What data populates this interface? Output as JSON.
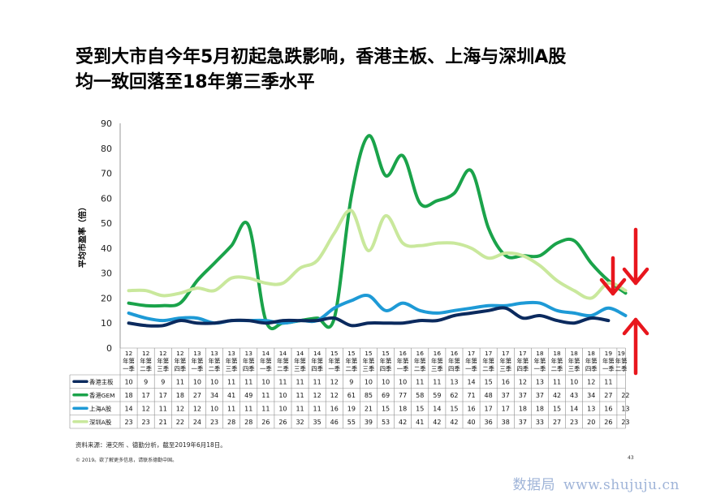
{
  "title": {
    "line1": "受到大市自今年5月初起急跌影响，香港主板、上海与深圳A股",
    "line2": "均一致回落至18年第三季水平"
  },
  "footer": {
    "source": "资料来源：港交所 、德勤分析，截至2019年6月18日。",
    "copyright": "© 2019。欲了解更多信息，请联系德勤中国。",
    "page_number": "43"
  },
  "watermark": {
    "cn": "数据局",
    "url": "www.shujuju.cn"
  },
  "chart_data": {
    "type": "line",
    "ylabel": "平均市盈率（倍）",
    "ylim": [
      0,
      90
    ],
    "yticks": [
      0,
      10,
      20,
      30,
      40,
      50,
      60,
      70,
      80,
      90
    ],
    "categories": [
      [
        "12",
        "年第",
        "一季"
      ],
      [
        "12",
        "年第",
        "二季"
      ],
      [
        "12",
        "年第",
        "三季"
      ],
      [
        "12",
        "年第",
        "四季"
      ],
      [
        "13",
        "年第",
        "一季"
      ],
      [
        "13",
        "年第",
        "二季"
      ],
      [
        "13",
        "年第",
        "三季"
      ],
      [
        "13",
        "年第",
        "四季"
      ],
      [
        "14",
        "年第",
        "一季"
      ],
      [
        "14",
        "年第",
        "二季"
      ],
      [
        "14",
        "年第",
        "三季"
      ],
      [
        "14",
        "年第",
        "四季"
      ],
      [
        "15",
        "年第",
        "一季"
      ],
      [
        "15",
        "年第",
        "二季"
      ],
      [
        "15",
        "年第",
        "三季"
      ],
      [
        "15",
        "年第",
        "四季"
      ],
      [
        "16",
        "年第",
        "一季"
      ],
      [
        "16",
        "年第",
        "二季"
      ],
      [
        "16",
        "年第",
        "三季"
      ],
      [
        "16",
        "年第",
        "四季"
      ],
      [
        "17",
        "年第",
        "一季"
      ],
      [
        "17",
        "年第",
        "二季"
      ],
      [
        "17",
        "年第",
        "三季"
      ],
      [
        "17",
        "年第",
        "四季"
      ],
      [
        "18",
        "年第",
        "一季"
      ],
      [
        "18",
        "年第",
        "二季"
      ],
      [
        "18",
        "年第",
        "三季"
      ],
      [
        "18",
        "年第",
        "四季"
      ],
      [
        "19",
        "年第",
        "一季"
      ],
      [
        "19",
        "年第",
        "二季"
      ]
    ],
    "series": [
      {
        "name": "香港主板",
        "color": "#0b2a5e",
        "values": [
          10,
          9,
          9,
          11,
          10,
          10,
          11,
          11,
          10,
          11,
          11,
          11,
          12,
          9,
          10,
          10,
          10,
          11,
          11,
          13,
          14,
          15,
          16,
          12,
          13,
          11,
          10,
          12,
          11,
          null
        ]
      },
      {
        "name": "香港GEM",
        "color": "#1aa34a",
        "values": [
          18,
          17,
          17,
          18,
          27,
          34,
          41,
          49,
          11,
          10,
          11,
          12,
          12,
          61,
          85,
          69,
          77,
          58,
          59,
          62,
          71,
          48,
          37,
          37,
          37,
          42,
          43,
          34,
          27,
          22
        ]
      },
      {
        "name": "上海A股",
        "color": "#1e9ad6",
        "values": [
          14,
          12,
          11,
          12,
          12,
          10,
          11,
          11,
          11,
          10,
          11,
          11,
          16,
          19,
          21,
          15,
          18,
          15,
          14,
          15,
          16,
          17,
          17,
          18,
          18,
          15,
          14,
          13,
          16,
          13
        ]
      },
      {
        "name": "深圳A股",
        "color": "#c9e89c",
        "values": [
          23,
          23,
          21,
          22,
          24,
          23,
          28,
          28,
          26,
          26,
          32,
          35,
          46,
          55,
          39,
          53,
          42,
          41,
          42,
          42,
          40,
          36,
          38,
          37,
          33,
          27,
          23,
          20,
          26,
          23
        ]
      }
    ],
    "table_values": [
      [
        "10",
        "9",
        "9",
        "11",
        "10",
        "10",
        "11",
        "11",
        "10",
        "11",
        "11",
        "11",
        "12",
        "9",
        "10",
        "10",
        "10",
        "11",
        "11",
        "13",
        "14",
        "15",
        "16",
        "12",
        "13",
        "11",
        "10",
        "12",
        "11"
      ],
      [
        "18",
        "17",
        "17",
        "18",
        "27",
        "34",
        "41",
        "49",
        "11",
        "10",
        "11",
        "12",
        "12",
        "61",
        "85",
        "69",
        "77",
        "58",
        "59",
        "62",
        "71",
        "48",
        "37",
        "37",
        "37",
        "42",
        "43",
        "34",
        "27",
        "22"
      ],
      [
        "14",
        "12",
        "11",
        "12",
        "12",
        "10",
        "11",
        "11",
        "11",
        "10",
        "11",
        "11",
        "16",
        "19",
        "21",
        "15",
        "18",
        "15",
        "14",
        "15",
        "16",
        "17",
        "17",
        "18",
        "18",
        "15",
        "14",
        "13",
        "16",
        "13"
      ],
      [
        "23",
        "23",
        "21",
        "22",
        "24",
        "23",
        "28",
        "28",
        "26",
        "26",
        "32",
        "35",
        "46",
        "55",
        "39",
        "53",
        "42",
        "41",
        "42",
        "42",
        "40",
        "36",
        "38",
        "37",
        "33",
        "27",
        "23",
        "20",
        "26",
        "23"
      ]
    ],
    "annotations": {
      "arrow_color": "#e8161d"
    },
    "grid": false
  }
}
